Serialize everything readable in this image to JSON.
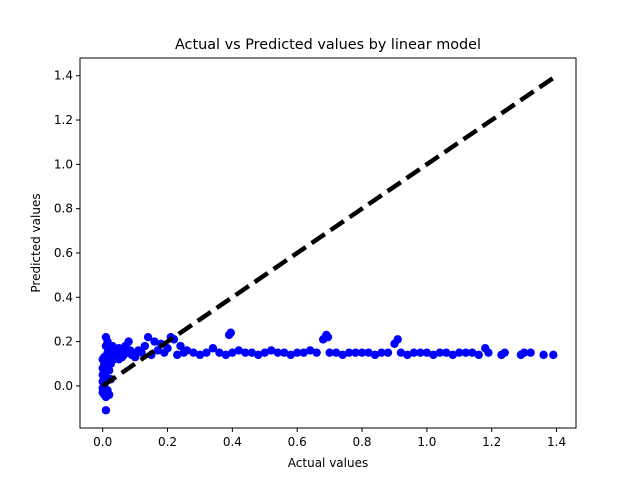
{
  "chart_data": {
    "type": "scatter",
    "title": "Actual vs Predicted values by linear model",
    "xlabel": "Actual values",
    "ylabel": "Predicted values",
    "xlim": [
      -0.07,
      1.46
    ],
    "ylim": [
      -0.19,
      1.48
    ],
    "xticks": [
      "0.0",
      "0.2",
      "0.4",
      "0.6",
      "0.8",
      "1.0",
      "1.2",
      "1.4"
    ],
    "yticks": [
      "0.0",
      "0.2",
      "0.4",
      "0.6",
      "0.8",
      "1.0",
      "1.2",
      "1.4"
    ],
    "grid": false,
    "colors": {
      "points": "#0000ff",
      "reference_line": "#000000"
    },
    "reference_line": {
      "style": "dashed",
      "x": [
        0.0,
        1.39
      ],
      "y": [
        0.0,
        1.39
      ]
    },
    "series": [
      {
        "x": [
          0.0,
          0.0,
          0.0,
          0.0,
          0.0,
          0.0,
          0.005,
          0.005,
          0.005,
          0.005,
          0.005,
          0.01,
          0.01,
          0.01,
          0.01,
          0.01,
          0.015,
          0.015,
          0.015,
          0.015,
          0.015,
          0.02,
          0.02,
          0.02,
          0.02,
          0.02,
          0.025,
          0.025,
          0.025,
          0.025,
          0.03,
          0.03,
          0.03,
          0.035,
          0.035,
          0.04,
          0.04,
          0.045,
          0.05,
          0.05,
          0.055,
          0.06,
          0.06,
          0.065,
          0.07,
          0.075,
          0.08,
          0.085,
          0.09,
          0.1,
          0.11,
          0.12,
          0.13,
          0.14,
          0.15,
          0.16,
          0.17,
          0.18,
          0.19,
          0.2,
          0.21,
          0.22,
          0.23,
          0.24,
          0.25,
          0.26,
          0.28,
          0.3,
          0.32,
          0.34,
          0.36,
          0.38,
          0.39,
          0.395,
          0.4,
          0.42,
          0.44,
          0.46,
          0.48,
          0.5,
          0.52,
          0.54,
          0.56,
          0.58,
          0.6,
          0.62,
          0.64,
          0.66,
          0.68,
          0.69,
          0.695,
          0.7,
          0.72,
          0.74,
          0.76,
          0.78,
          0.8,
          0.82,
          0.84,
          0.86,
          0.88,
          0.9,
          0.91,
          0.92,
          0.94,
          0.96,
          0.98,
          1.0,
          1.02,
          1.04,
          1.06,
          1.08,
          1.1,
          1.12,
          1.14,
          1.16,
          1.18,
          1.19,
          1.23,
          1.24,
          1.29,
          1.3,
          1.32,
          1.36,
          1.39
        ],
        "y": [
          0.12,
          0.08,
          0.05,
          0.02,
          -0.01,
          -0.03,
          0.1,
          0.06,
          0.0,
          -0.04,
          0.13,
          0.22,
          0.18,
          0.04,
          -0.05,
          -0.11,
          0.2,
          0.15,
          0.09,
          -0.02,
          0.11,
          0.17,
          0.13,
          -0.04,
          0.07,
          0.14,
          0.16,
          0.1,
          0.03,
          0.12,
          0.18,
          0.13,
          0.14,
          0.17,
          0.12,
          0.13,
          0.16,
          0.14,
          0.17,
          0.12,
          0.15,
          0.13,
          0.16,
          0.14,
          0.18,
          0.15,
          0.2,
          0.16,
          0.14,
          0.13,
          0.16,
          0.15,
          0.18,
          0.22,
          0.14,
          0.2,
          0.16,
          0.19,
          0.15,
          0.17,
          0.22,
          0.21,
          0.14,
          0.18,
          0.15,
          0.16,
          0.15,
          0.14,
          0.15,
          0.17,
          0.15,
          0.14,
          0.23,
          0.24,
          0.15,
          0.16,
          0.15,
          0.15,
          0.14,
          0.15,
          0.16,
          0.15,
          0.15,
          0.14,
          0.15,
          0.15,
          0.16,
          0.15,
          0.21,
          0.23,
          0.22,
          0.15,
          0.15,
          0.14,
          0.15,
          0.15,
          0.15,
          0.15,
          0.14,
          0.15,
          0.15,
          0.19,
          0.21,
          0.15,
          0.14,
          0.15,
          0.15,
          0.15,
          0.14,
          0.15,
          0.15,
          0.14,
          0.15,
          0.15,
          0.15,
          0.14,
          0.17,
          0.15,
          0.14,
          0.15,
          0.14,
          0.15,
          0.15,
          0.14,
          0.14
        ]
      }
    ]
  }
}
